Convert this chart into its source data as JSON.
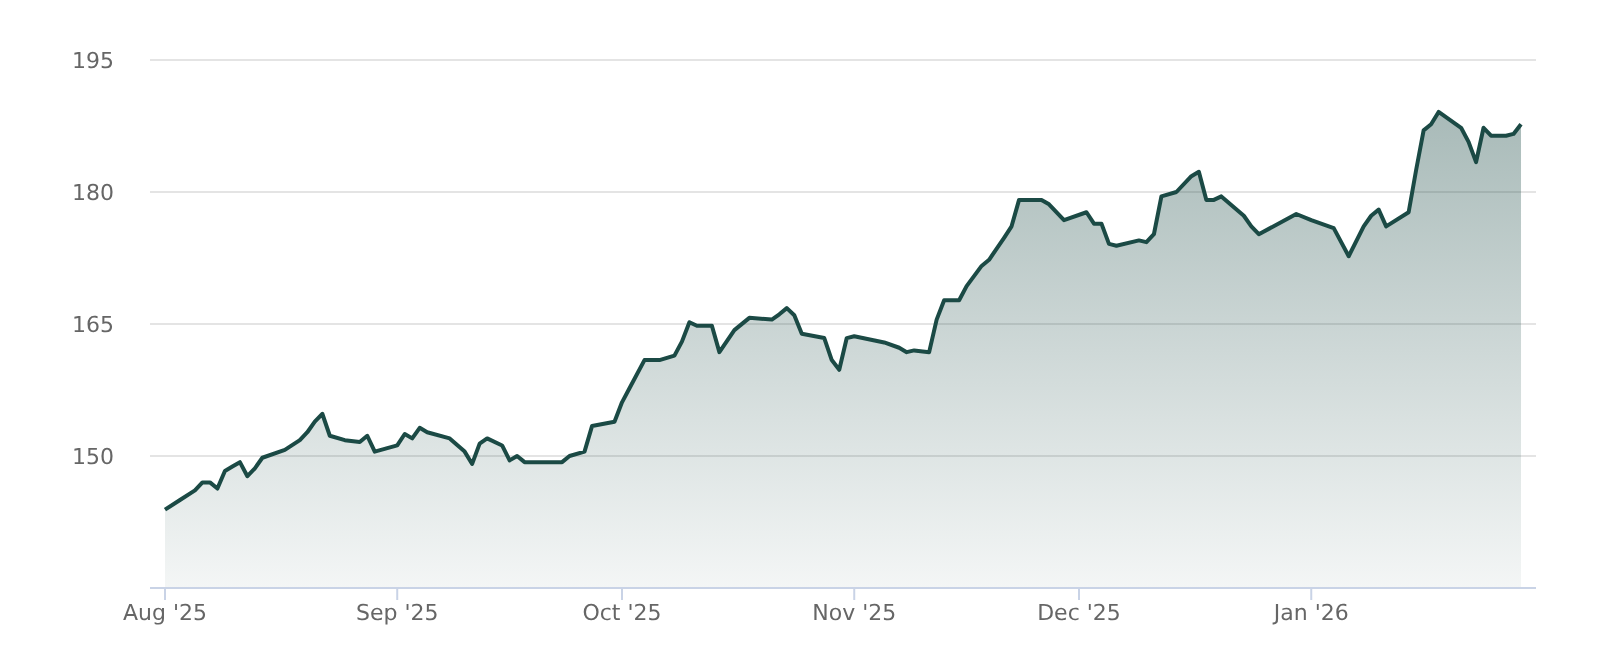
{
  "chart_data": {
    "type": "area",
    "x": [
      "2025-08-01",
      "2025-08-03",
      "2025-08-05",
      "2025-08-06",
      "2025-08-07",
      "2025-08-08",
      "2025-08-09",
      "2025-08-10",
      "2025-08-11",
      "2025-08-12",
      "2025-08-13",
      "2025-08-14",
      "2025-08-17",
      "2025-08-19",
      "2025-08-20",
      "2025-08-21",
      "2025-08-22",
      "2025-08-23",
      "2025-08-25",
      "2025-08-27",
      "2025-08-28",
      "2025-08-29",
      "2025-09-01",
      "2025-09-02",
      "2025-09-03",
      "2025-09-04",
      "2025-09-05",
      "2025-09-08",
      "2025-09-10",
      "2025-09-11",
      "2025-09-12",
      "2025-09-13",
      "2025-09-15",
      "2025-09-16",
      "2025-09-17",
      "2025-09-18",
      "2025-09-23",
      "2025-09-24",
      "2025-09-26",
      "2025-09-27",
      "2025-09-30",
      "2025-10-01",
      "2025-10-02",
      "2025-10-04",
      "2025-10-06",
      "2025-10-08",
      "2025-10-09",
      "2025-10-10",
      "2025-10-11",
      "2025-10-13",
      "2025-10-14",
      "2025-10-16",
      "2025-10-18",
      "2025-10-21",
      "2025-10-22",
      "2025-10-23",
      "2025-10-24",
      "2025-10-25",
      "2025-10-28",
      "2025-10-29",
      "2025-10-30",
      "2025-10-31",
      "2025-11-01",
      "2025-11-05",
      "2025-11-07",
      "2025-11-08",
      "2025-11-09",
      "2025-11-11",
      "2025-11-12",
      "2025-11-13",
      "2025-11-15",
      "2025-11-16",
      "2025-11-18",
      "2025-11-19",
      "2025-11-21",
      "2025-11-22",
      "2025-11-23",
      "2025-11-26",
      "2025-11-27",
      "2025-11-29",
      "2025-12-02",
      "2025-12-03",
      "2025-12-04",
      "2025-12-05",
      "2025-12-06",
      "2025-12-09",
      "2025-12-10",
      "2025-12-11",
      "2025-12-12",
      "2025-12-14",
      "2025-12-16",
      "2025-12-17",
      "2025-12-18",
      "2025-12-19",
      "2025-12-20",
      "2025-12-23",
      "2025-12-24",
      "2025-12-25",
      "2025-12-30",
      "2026-01-01",
      "2026-01-04",
      "2026-01-06",
      "2026-01-08",
      "2026-01-09",
      "2026-01-10",
      "2026-01-11",
      "2026-01-14",
      "2026-01-15",
      "2026-01-16",
      "2026-01-17",
      "2026-01-18",
      "2026-01-21",
      "2026-01-22",
      "2026-01-23",
      "2026-01-24",
      "2026-01-25",
      "2026-01-27",
      "2026-01-28",
      "2026-01-29"
    ],
    "series": [
      {
        "color": "#1b4a45",
        "values": [
          143.9,
          145.0,
          146.1,
          147.0,
          147.0,
          146.3,
          148.3,
          148.8,
          149.3,
          147.7,
          148.6,
          149.8,
          150.7,
          151.8,
          152.7,
          153.9,
          154.8,
          152.3,
          151.8,
          151.6,
          152.3,
          150.5,
          151.2,
          152.5,
          152.0,
          153.2,
          152.7,
          152.0,
          150.5,
          149.1,
          151.4,
          152.0,
          151.2,
          149.5,
          150.0,
          149.3,
          149.3,
          150.0,
          150.5,
          153.4,
          153.9,
          156.1,
          157.7,
          160.9,
          160.9,
          161.4,
          163.0,
          165.2,
          164.8,
          164.8,
          161.8,
          164.3,
          165.7,
          165.5,
          166.1,
          166.8,
          166.0,
          163.9,
          163.4,
          160.9,
          159.8,
          163.4,
          163.6,
          162.9,
          162.3,
          161.8,
          162.0,
          161.8,
          165.5,
          167.7,
          167.7,
          169.3,
          171.6,
          172.3,
          174.8,
          176.1,
          179.1,
          179.1,
          178.6,
          176.8,
          177.7,
          176.4,
          176.4,
          174.1,
          173.9,
          174.5,
          174.3,
          175.2,
          179.5,
          180.0,
          181.8,
          182.3,
          179.1,
          179.1,
          179.5,
          177.3,
          176.1,
          175.2,
          177.5,
          176.8,
          175.9,
          172.7,
          176.1,
          177.3,
          178.0,
          176.1,
          177.7,
          182.5,
          187.0,
          187.7,
          189.1,
          187.3,
          185.7,
          183.4,
          187.3,
          186.4,
          186.4,
          186.6,
          187.7
        ]
      }
    ],
    "xlim": [
      "2025-07-30",
      "2026-01-31"
    ],
    "xticks": [
      {
        "value": "2025-08-01",
        "label": "Aug '25"
      },
      {
        "value": "2025-09-01",
        "label": "Sep '25"
      },
      {
        "value": "2025-10-01",
        "label": "Oct '25"
      },
      {
        "value": "2025-11-01",
        "label": "Nov '25"
      },
      {
        "value": "2025-12-01",
        "label": "Dec '25"
      },
      {
        "value": "2026-01-01",
        "label": "Jan '26"
      }
    ],
    "ylim": [
      135,
      195
    ],
    "yticks": [
      150,
      165,
      180,
      195
    ],
    "grid": "y",
    "marker": "none",
    "line_style": "solid"
  }
}
